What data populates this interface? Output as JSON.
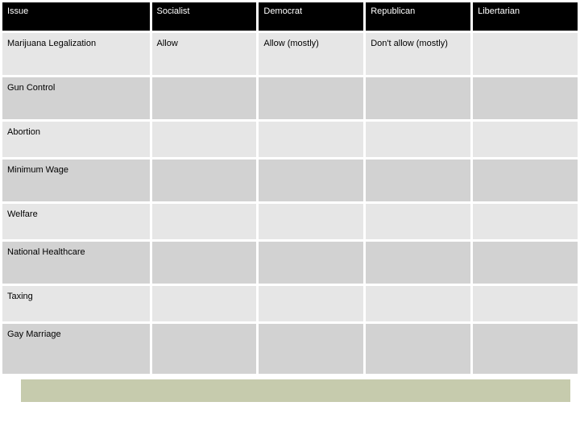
{
  "table": {
    "columns": [
      "Issue",
      "Socialist",
      "Democrat",
      "Republican",
      "Libertarian"
    ],
    "col_widths": [
      "26%",
      "18.5%",
      "18.5%",
      "18.5%",
      "18.5%"
    ],
    "header_bg": "#000000",
    "header_fg": "#ffffff",
    "row_bg_even": "#e6e6e6",
    "row_bg_odd": "#d2d2d2",
    "border_spacing": 3,
    "font_family": "Verdana, Arial, sans-serif",
    "header_fontsize": 11,
    "cell_fontsize": 11,
    "rows": [
      {
        "issue": "Marijuana Legalization",
        "socialist": "Allow",
        "democrat": "Allow (mostly)",
        "republican": "Don't allow (mostly)",
        "libertarian": "",
        "height": "h-med"
      },
      {
        "issue": "Gun Control",
        "socialist": "",
        "democrat": "",
        "republican": "",
        "libertarian": "",
        "height": "h-med"
      },
      {
        "issue": "Abortion",
        "socialist": "",
        "democrat": "",
        "republican": "",
        "libertarian": "",
        "height": "h-short"
      },
      {
        "issue": "Minimum Wage",
        "socialist": "",
        "democrat": "",
        "republican": "",
        "libertarian": "",
        "height": "h-med"
      },
      {
        "issue": "Welfare",
        "socialist": "",
        "democrat": "",
        "republican": "",
        "libertarian": "",
        "height": "h-short"
      },
      {
        "issue": "National Healthcare",
        "socialist": "",
        "democrat": "",
        "republican": "",
        "libertarian": "",
        "height": "h-med"
      },
      {
        "issue": "Taxing",
        "socialist": "",
        "democrat": "",
        "republican": "",
        "libertarian": "",
        "height": "h-short"
      },
      {
        "issue": "Gay Marriage",
        "socialist": "",
        "democrat": "",
        "republican": "",
        "libertarian": "",
        "height": "h-tall"
      }
    ]
  },
  "footer_bar_color": "#c6cbad"
}
